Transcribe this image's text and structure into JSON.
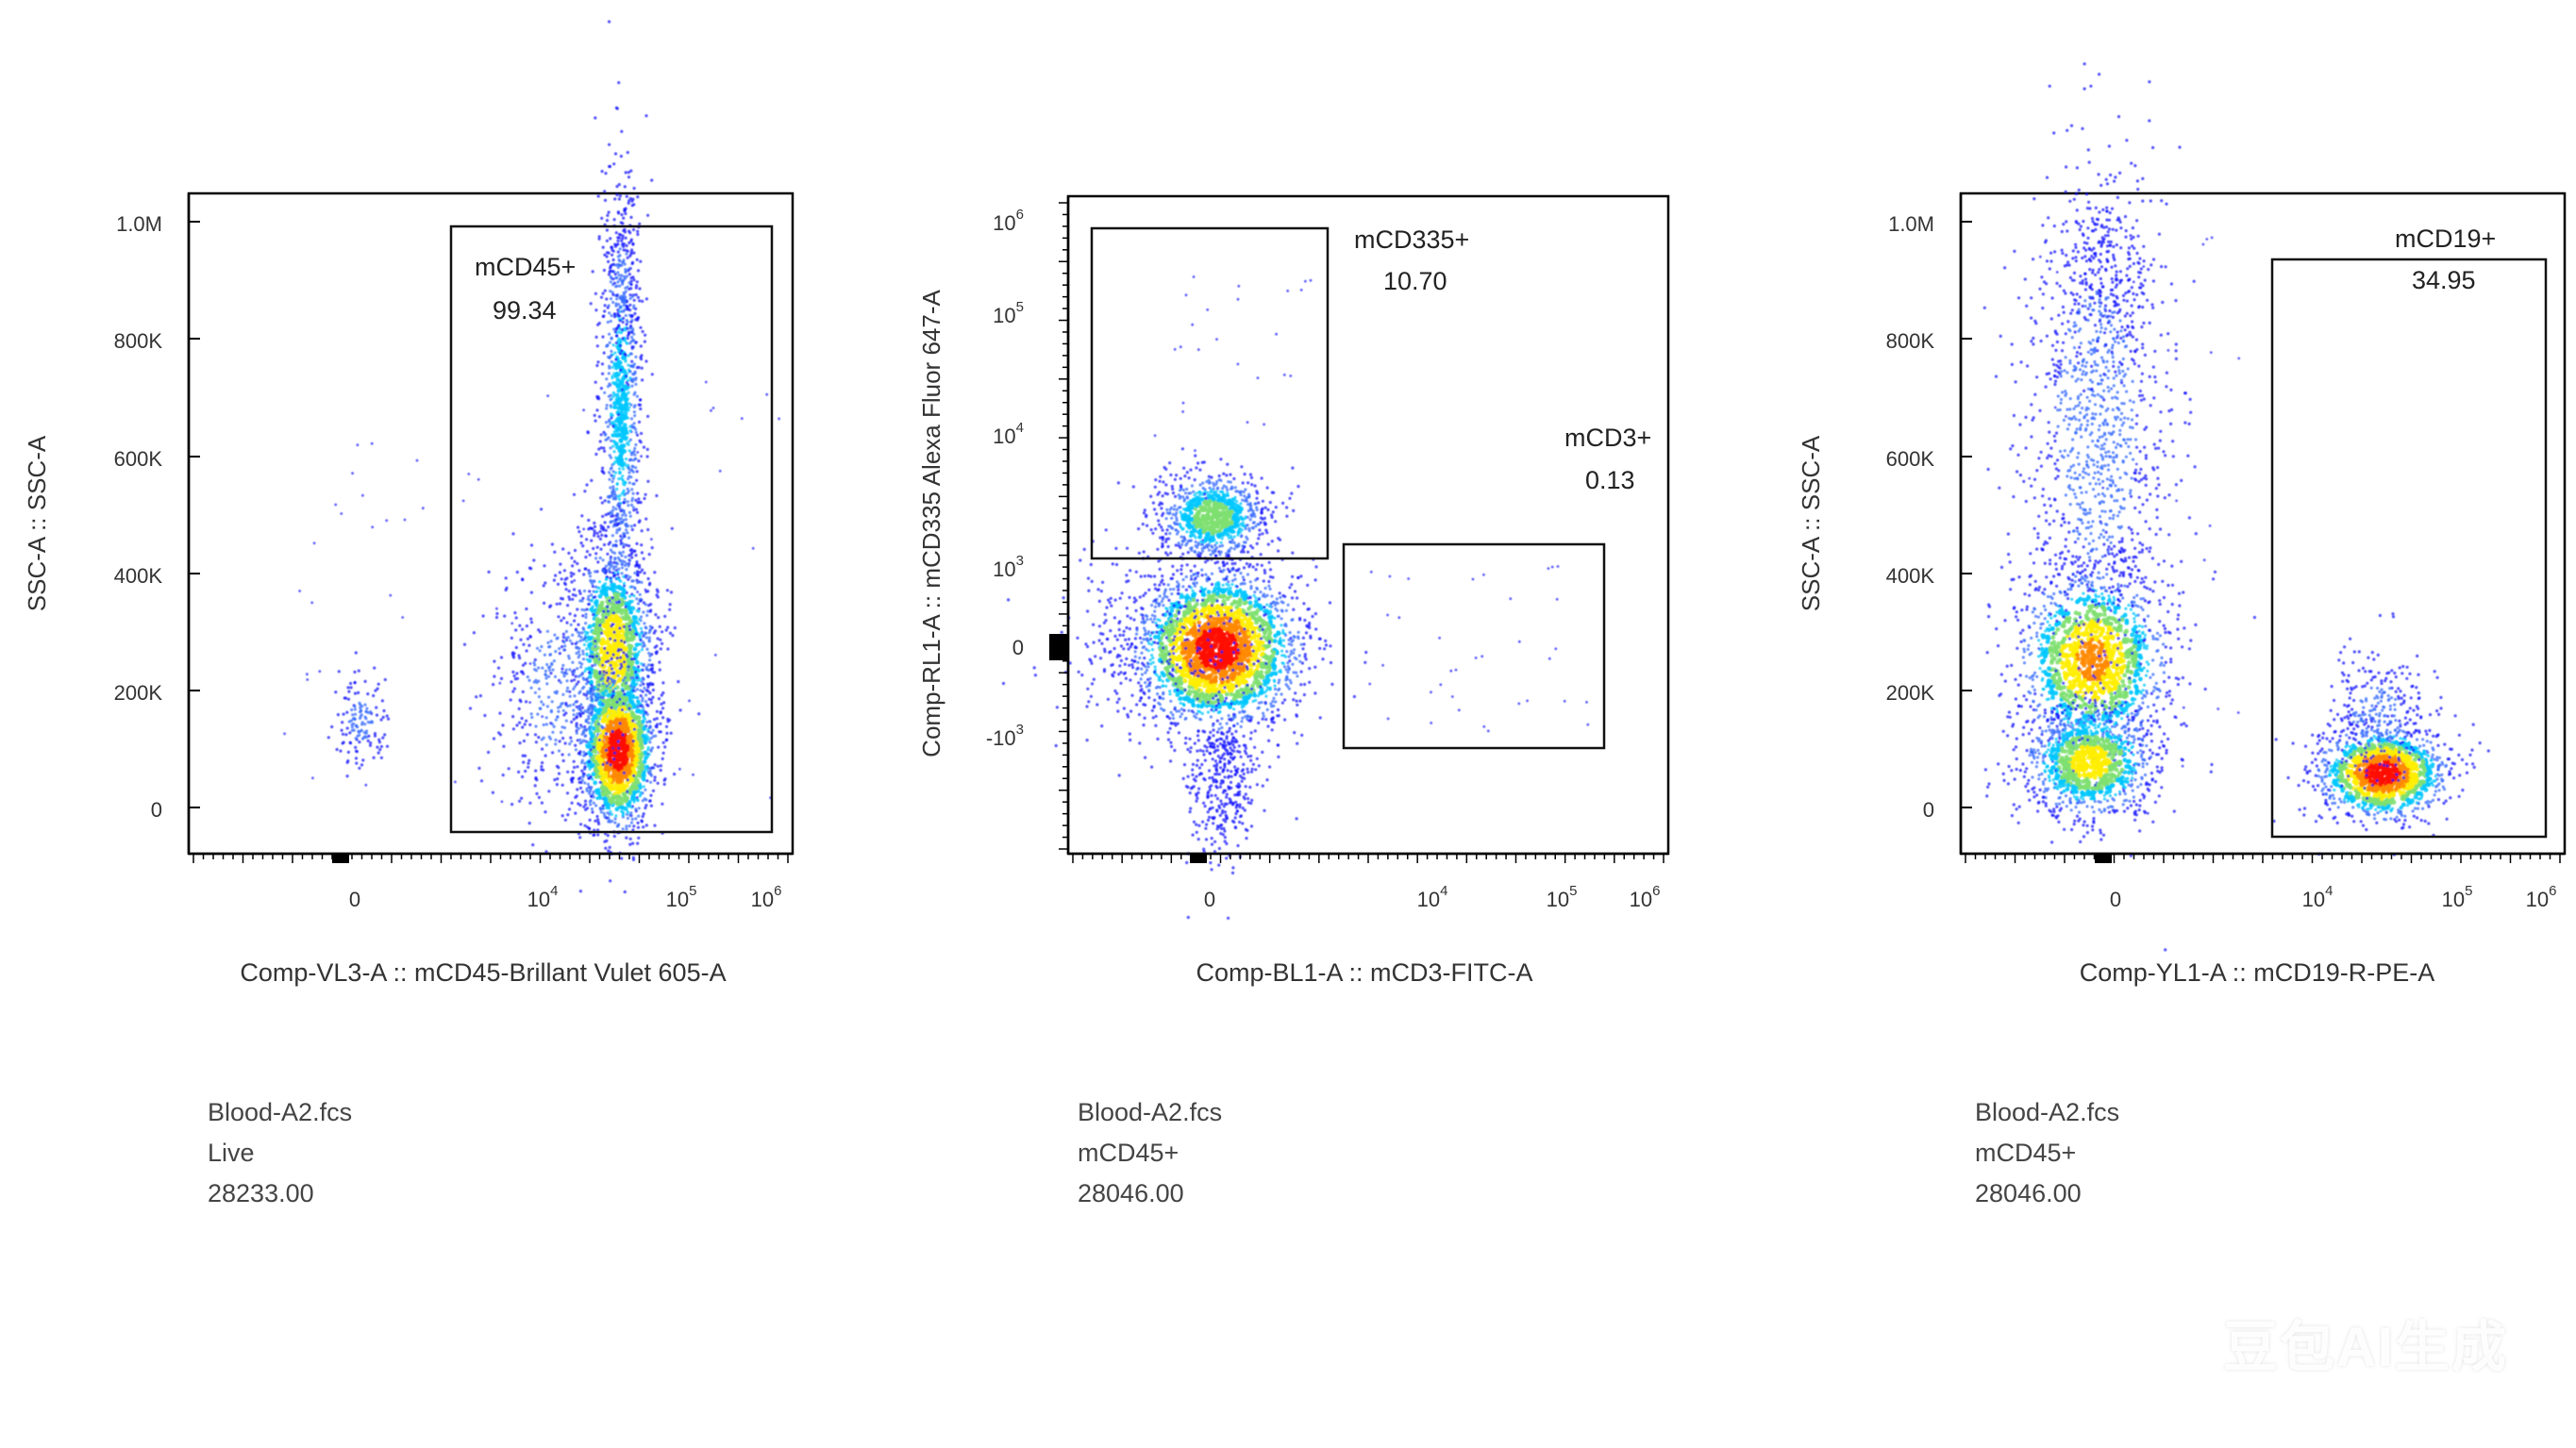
{
  "chart_data": [
    {
      "type": "scatter",
      "xlabel": "Comp-VL3-A :: mCD45-Brillant Vulet 605-A",
      "ylabel": "SSC-A :: SSC-A",
      "x_scale": "biexponential",
      "x_ticks": [
        "0",
        "10^4",
        "10^5",
        "10^6"
      ],
      "y_scale": "linear",
      "y_ticks": [
        "0",
        "200K",
        "400K",
        "600K",
        "800K",
        "1.0M"
      ],
      "ylim": [
        0,
        1000000
      ],
      "gates": [
        {
          "name": "mCD45+",
          "value": "99.34"
        }
      ],
      "file": "Blood-A2.fcs",
      "population": "Live",
      "count": "28233.00"
    },
    {
      "type": "scatter",
      "xlabel": "Comp-BL1-A :: mCD3-FITC-A",
      "ylabel": "Comp-RL1-A :: mCD335 Alexa Fluor 647-A",
      "x_scale": "biexponential",
      "x_ticks": [
        "0",
        "10^4",
        "10^5",
        "10^6"
      ],
      "y_scale": "biexponential",
      "y_ticks": [
        "-10^3",
        "0",
        "10^3",
        "10^4",
        "10^5",
        "10^6"
      ],
      "gates": [
        {
          "name": "mCD335+",
          "value": "10.70"
        },
        {
          "name": "mCD3+",
          "value": "0.13"
        }
      ],
      "file": "Blood-A2.fcs",
      "population": "mCD45+",
      "count": "28046.00"
    },
    {
      "type": "scatter",
      "xlabel": "Comp-YL1-A :: mCD19-R-PE-A",
      "ylabel": "SSC-A :: SSC-A",
      "x_scale": "biexponential",
      "x_ticks": [
        "0",
        "10^4",
        "10^5",
        "10^6"
      ],
      "y_scale": "linear",
      "y_ticks": [
        "0",
        "200K",
        "400K",
        "600K",
        "800K",
        "1.0M"
      ],
      "ylim": [
        0,
        1000000
      ],
      "gates": [
        {
          "name": "mCD19+",
          "value": "34.95"
        }
      ],
      "file": "Blood-A2.fcs",
      "population": "mCD45+",
      "count": "28046.00"
    }
  ],
  "colors": {
    "density_low": "#1a1aff",
    "density_mid": "#00c8ff",
    "density_high": "#ffee00",
    "density_peak": "#ff1000",
    "axis": "#000000",
    "text": "#444444"
  },
  "watermark": "豆包AI生成"
}
